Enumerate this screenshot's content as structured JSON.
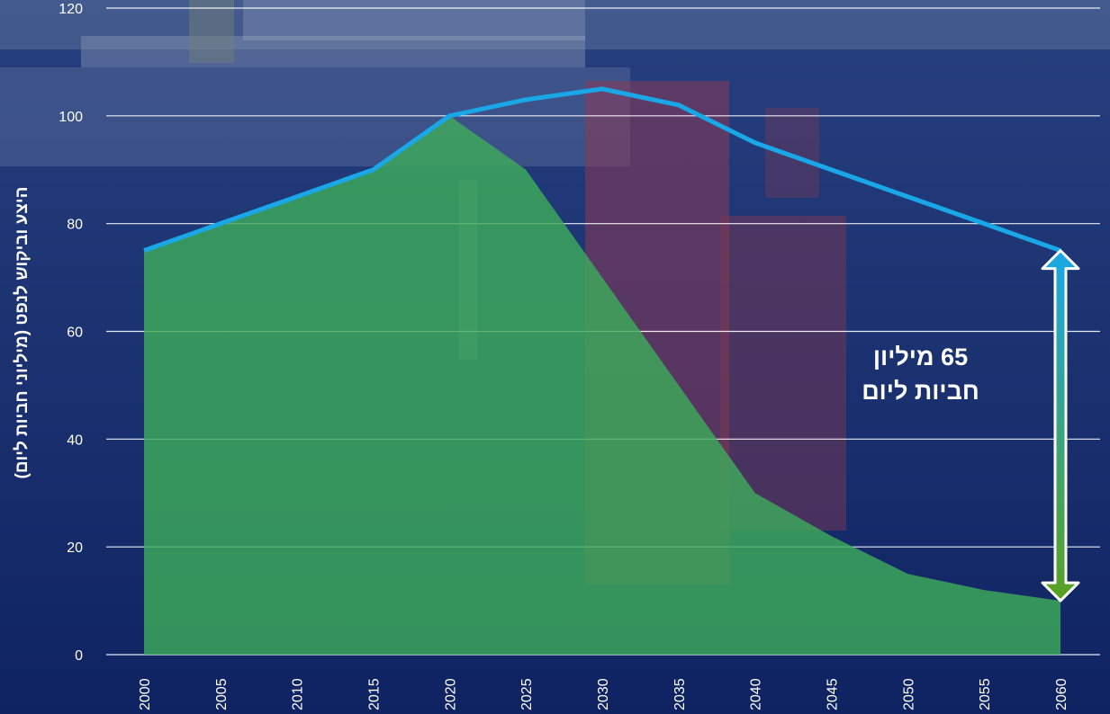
{
  "chart_data": {
    "type": "area",
    "ylabel": "היצע וביקוש לנפט (מיליוני חביות ליום)",
    "xlabel": "",
    "ylim": [
      0,
      120
    ],
    "yticks": [
      0,
      20,
      40,
      60,
      80,
      100,
      120
    ],
    "grid": true,
    "x": [
      2000,
      2005,
      2010,
      2015,
      2020,
      2025,
      2030,
      2035,
      2040,
      2045,
      2050,
      2055,
      2060
    ],
    "series": [
      {
        "kind": "area",
        "color": "#3dab5a",
        "values": [
          75,
          80,
          85,
          90,
          100,
          90,
          70,
          50,
          30,
          22,
          15,
          12,
          10
        ]
      },
      {
        "kind": "line",
        "color": "#1aa7e8",
        "values": [
          75,
          80,
          85,
          90,
          100,
          103,
          105,
          102,
          95,
          90,
          85,
          80,
          75
        ]
      }
    ],
    "annotation": {
      "line1": "65 מיליון",
      "line2": "חביות ליום",
      "arrow_from": 75,
      "arrow_to": 10,
      "arrow_x": 2060
    }
  },
  "colors": {
    "background": "#132a6b",
    "grid": "#ffffff",
    "area": "#3dab5a",
    "line": "#1aa7e8",
    "arrow_top": "#1aa7e8",
    "arrow_bottom": "#5aa020"
  }
}
